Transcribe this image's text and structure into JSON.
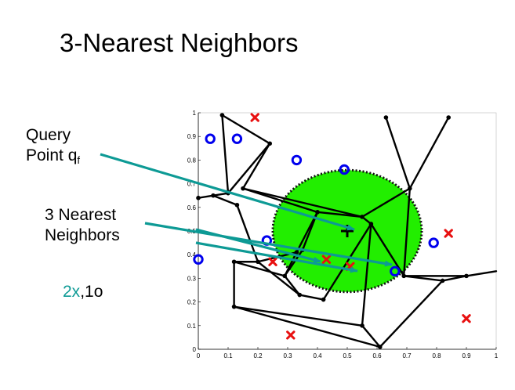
{
  "title": "3-Nearest Neighbors",
  "query_label": {
    "line1": "Query",
    "line2": "Point q",
    "subscript": "f"
  },
  "neighbors_label": {
    "line1": "3 Nearest",
    "line2": "Neighbors"
  },
  "neighbor_counts": {
    "x_count": "2x",
    "separator": ",",
    "o_count": "1o"
  },
  "colors": {
    "teal": "#0d9a95",
    "circle_blue": "#0000ee",
    "cross_red": "#e81010",
    "disc_green": "#22ee00"
  },
  "chart_data": {
    "type": "scatter",
    "x_ticks": [
      "0",
      "0.1",
      "0.2",
      "0.3",
      "0.4",
      "0.5",
      "0.6",
      "0.7",
      "0.8",
      "0.9",
      "1"
    ],
    "y_ticks": [
      "0",
      "0.1",
      "0.2",
      "0.3",
      "0.4",
      "0.5",
      "0.6",
      "0.7",
      "0.8",
      "0.9",
      "1"
    ],
    "xlim": [
      0,
      1
    ],
    "ylim": [
      0,
      1
    ],
    "query_point": [
      0.5,
      0.5
    ],
    "neighborhood_radius": 0.25,
    "circles": [
      [
        0.04,
        0.89
      ],
      [
        0.13,
        0.89
      ],
      [
        0.33,
        0.8
      ],
      [
        0.49,
        0.76
      ],
      [
        0.23,
        0.46
      ],
      [
        0.0,
        0.38
      ],
      [
        0.66,
        0.33
      ],
      [
        0.79,
        0.45
      ]
    ],
    "crosses": [
      [
        0.19,
        0.98
      ],
      [
        0.25,
        0.37
      ],
      [
        0.43,
        0.38
      ],
      [
        0.51,
        0.35
      ],
      [
        0.84,
        0.49
      ],
      [
        0.9,
        0.13
      ],
      [
        0.31,
        0.06
      ]
    ],
    "voronoi_vertices": [
      [
        0.08,
        0.99
      ],
      [
        0.24,
        0.87
      ],
      [
        0.15,
        0.68
      ],
      [
        0.1,
        0.66
      ],
      [
        0.05,
        0.65
      ],
      [
        0.0,
        0.64
      ],
      [
        0.13,
        0.61
      ],
      [
        0.4,
        0.58
      ],
      [
        0.55,
        0.56
      ],
      [
        0.58,
        0.53
      ],
      [
        0.35,
        0.42
      ],
      [
        0.33,
        0.41
      ],
      [
        0.2,
        0.37
      ],
      [
        0.12,
        0.37
      ],
      [
        0.29,
        0.31
      ],
      [
        0.34,
        0.23
      ],
      [
        0.42,
        0.21
      ],
      [
        0.12,
        0.18
      ],
      [
        0.55,
        0.1
      ],
      [
        0.61,
        0.01
      ],
      [
        0.71,
        0.68
      ],
      [
        0.69,
        0.31
      ],
      [
        0.82,
        0.29
      ],
      [
        0.9,
        0.31
      ],
      [
        0.84,
        0.98
      ],
      [
        0.63,
        0.98
      ]
    ],
    "voronoi_edges": [
      [
        0,
        1
      ],
      [
        1,
        2
      ],
      [
        1,
        3
      ],
      [
        0,
        3
      ],
      [
        3,
        4
      ],
      [
        4,
        5
      ],
      [
        4,
        6
      ],
      [
        6,
        12
      ],
      [
        12,
        13
      ],
      [
        13,
        14
      ],
      [
        13,
        17
      ],
      [
        2,
        7
      ],
      [
        2,
        8
      ],
      [
        7,
        8
      ],
      [
        7,
        11
      ],
      [
        11,
        12
      ],
      [
        11,
        14
      ],
      [
        14,
        15
      ],
      [
        15,
        16
      ],
      [
        16,
        9
      ],
      [
        9,
        8
      ],
      [
        9,
        18
      ],
      [
        18,
        19
      ],
      [
        18,
        17
      ],
      [
        9,
        21
      ],
      [
        21,
        22
      ],
      [
        22,
        23
      ],
      [
        21,
        20
      ],
      [
        20,
        8
      ],
      [
        20,
        24
      ],
      [
        7,
        10
      ],
      [
        10,
        14
      ],
      [
        17,
        19
      ],
      [
        12,
        15
      ],
      [
        22,
        19
      ],
      [
        23,
        21
      ]
    ]
  }
}
